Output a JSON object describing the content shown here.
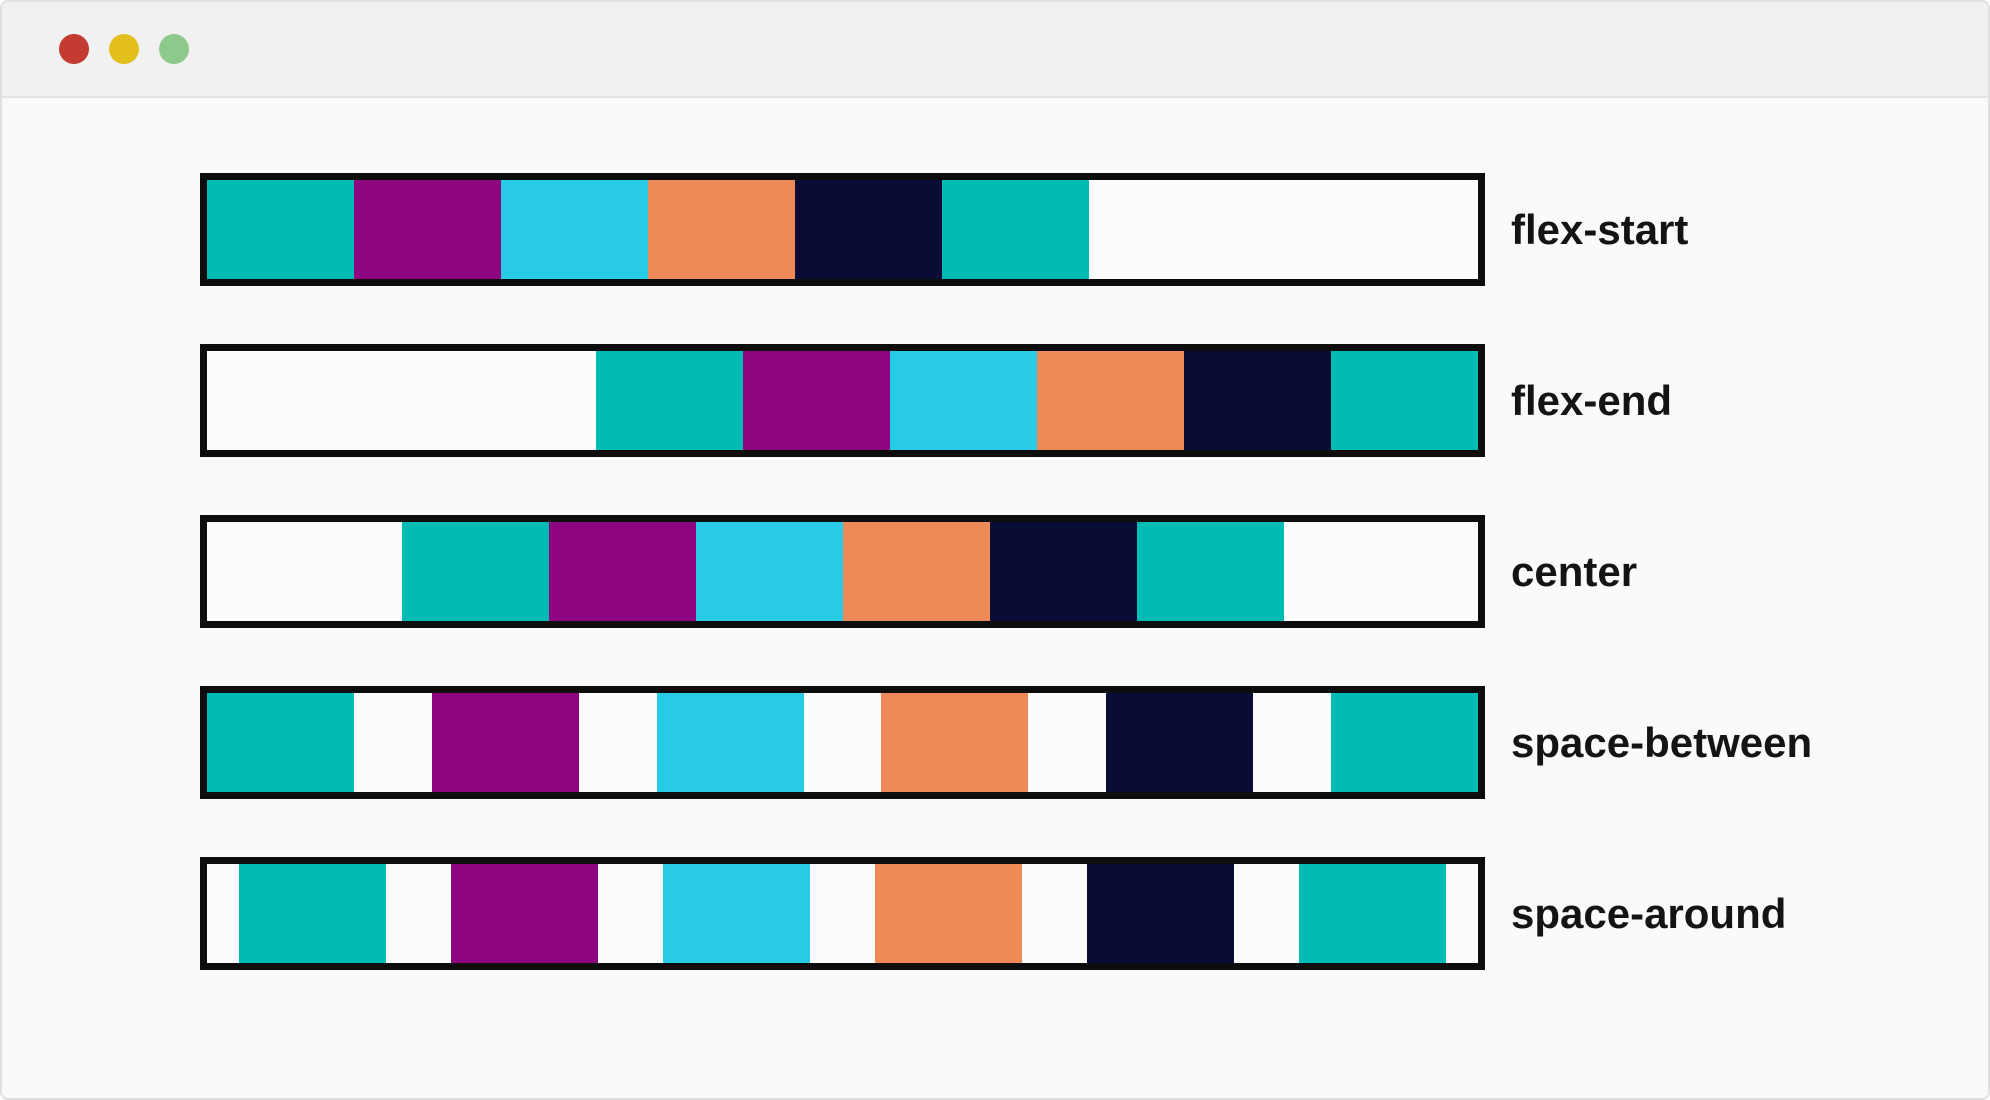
{
  "window": {
    "background": "#fafafa",
    "frame_border_color": "#e0e0e0",
    "titlebar": {
      "background": "#f1f1f1",
      "border_bottom_color": "#e3e3e3",
      "traffic_lights": [
        {
          "name": "close",
          "color": "#c33b32"
        },
        {
          "name": "minimize",
          "color": "#e3c01d"
        },
        {
          "name": "maximize",
          "color": "#8cc98b"
        }
      ]
    }
  },
  "demo": {
    "container": {
      "border_color": "#0d0d0d",
      "background": "#fcfcfc"
    },
    "item_colors": [
      "#00bcb4",
      "#8e0580",
      "#27cbe6",
      "#ee8a58",
      "#090c35",
      "#00bcb4"
    ],
    "label_color": "#141414",
    "rows": [
      {
        "label": "flex-start",
        "justify": "flex-start"
      },
      {
        "label": "flex-end",
        "justify": "flex-end"
      },
      {
        "label": "center",
        "justify": "center"
      },
      {
        "label": "space-between",
        "justify": "space-between"
      },
      {
        "label": "space-around",
        "justify": "space-around"
      }
    ]
  }
}
